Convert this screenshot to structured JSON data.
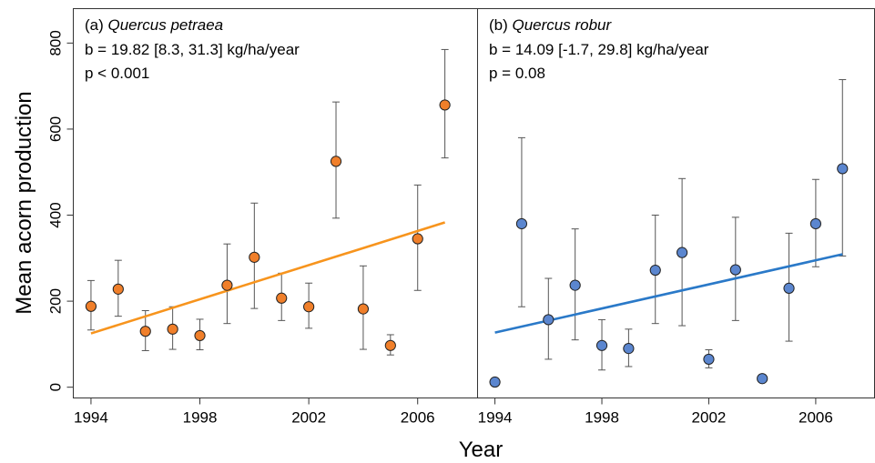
{
  "figure": {
    "ylabel": "Mean acorn production",
    "xlabel": "Year"
  },
  "chart_data": [
    {
      "type": "scatter",
      "panel_prefix": "(a) ",
      "species": "Quercus petraea",
      "slope_text": "b = 19.82 [8.3, 31.3] kg/ha/year",
      "p_text": "p < 0.001",
      "point_color": "#f07f2a",
      "line_color": "#f7941d",
      "xlim": [
        1993.35,
        2008.2
      ],
      "ylim": [
        -25,
        880
      ],
      "xticks": [
        1994,
        1998,
        2002,
        2006
      ],
      "yticks": [
        0,
        200,
        400,
        600,
        800
      ],
      "points": [
        {
          "x": 1994,
          "y": 188,
          "lo": 133,
          "hi": 248
        },
        {
          "x": 1995,
          "y": 228,
          "lo": 165,
          "hi": 295
        },
        {
          "x": 1996,
          "y": 130,
          "lo": 85,
          "hi": 178
        },
        {
          "x": 1997,
          "y": 135,
          "lo": 88,
          "hi": 187
        },
        {
          "x": 1998,
          "y": 120,
          "lo": 87,
          "hi": 158
        },
        {
          "x": 1999,
          "y": 237,
          "lo": 148,
          "hi": 333
        },
        {
          "x": 2000,
          "y": 302,
          "lo": 183,
          "hi": 428
        },
        {
          "x": 2001,
          "y": 207,
          "lo": 155,
          "hi": 265
        },
        {
          "x": 2002,
          "y": 187,
          "lo": 137,
          "hi": 242
        },
        {
          "x": 2003,
          "y": 525,
          "lo": 393,
          "hi": 663
        },
        {
          "x": 2004,
          "y": 182,
          "lo": 88,
          "hi": 282
        },
        {
          "x": 2005,
          "y": 97,
          "lo": 75,
          "hi": 122
        },
        {
          "x": 2006,
          "y": 345,
          "lo": 225,
          "hi": 470
        },
        {
          "x": 2007,
          "y": 656,
          "lo": 533,
          "hi": 785
        }
      ],
      "trend": {
        "x": [
          1994,
          2007
        ],
        "y": [
          125,
          383
        ]
      }
    },
    {
      "type": "scatter",
      "panel_prefix": "(b) ",
      "species": "Quercus robur",
      "slope_text": "b = 14.09 [-1.7, 29.8] kg/ha/year",
      "p_text": "p = 0.08",
      "point_color": "#5b86cf",
      "line_color": "#2a79c8",
      "xlim": [
        1993.35,
        2008.2
      ],
      "ylim": [
        -25,
        880
      ],
      "xticks": [
        1994,
        1998,
        2002,
        2006
      ],
      "yticks": [
        0,
        200,
        400,
        600,
        800
      ],
      "points": [
        {
          "x": 1994,
          "y": 12,
          "lo": 12,
          "hi": 12
        },
        {
          "x": 1995,
          "y": 380,
          "lo": 187,
          "hi": 580
        },
        {
          "x": 1996,
          "y": 157,
          "lo": 65,
          "hi": 253
        },
        {
          "x": 1997,
          "y": 237,
          "lo": 110,
          "hi": 368
        },
        {
          "x": 1998,
          "y": 97,
          "lo": 40,
          "hi": 157
        },
        {
          "x": 1999,
          "y": 90,
          "lo": 48,
          "hi": 135
        },
        {
          "x": 2000,
          "y": 272,
          "lo": 148,
          "hi": 400
        },
        {
          "x": 2001,
          "y": 313,
          "lo": 143,
          "hi": 485
        },
        {
          "x": 2002,
          "y": 65,
          "lo": 45,
          "hi": 87
        },
        {
          "x": 2003,
          "y": 273,
          "lo": 155,
          "hi": 395
        },
        {
          "x": 2004,
          "y": 20,
          "lo": 20,
          "hi": 20
        },
        {
          "x": 2005,
          "y": 230,
          "lo": 107,
          "hi": 358
        },
        {
          "x": 2006,
          "y": 380,
          "lo": 280,
          "hi": 483
        },
        {
          "x": 2007,
          "y": 508,
          "lo": 305,
          "hi": 715
        }
      ],
      "trend": {
        "x": [
          1994,
          2007
        ],
        "y": [
          127,
          309
        ]
      }
    }
  ]
}
